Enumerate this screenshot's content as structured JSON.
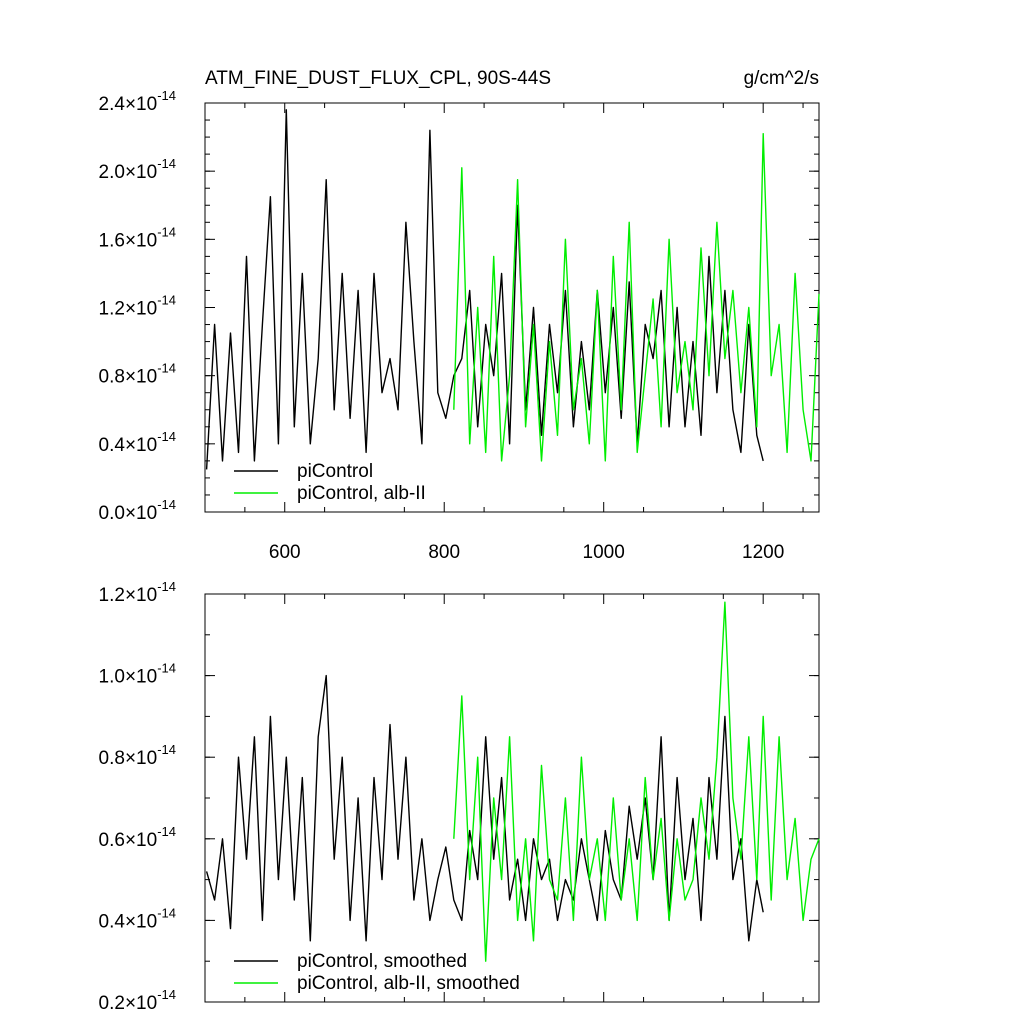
{
  "chart_data": [
    {
      "type": "line",
      "title": "ATM_FINE_DUST_FLUX_CPL, 90S-44S",
      "units": "g/cm^2/s",
      "xlim": [
        500,
        1270
      ],
      "ylim": [
        0,
        2.4
      ],
      "x_ticks": [
        600,
        800,
        1000,
        1200
      ],
      "x_tick_labels": [
        "600",
        "800",
        "1000",
        "1200"
      ],
      "y_ticks": [
        0,
        0.4,
        0.8,
        1.2,
        1.6,
        2.0,
        2.4
      ],
      "y_tick_labels": [
        "0.0",
        "0.4",
        "0.8",
        "1.2",
        "1.6",
        "2.0",
        "2.4"
      ],
      "y_scale_factor": "×10",
      "y_scale_exponent": "-14",
      "legend_position": "bottom-left",
      "series": [
        {
          "name": "piControl",
          "color": "#000000",
          "x": [
            502,
            512,
            522,
            532,
            542,
            552,
            562,
            572,
            582,
            592,
            602,
            612,
            622,
            632,
            642,
            652,
            662,
            672,
            682,
            692,
            702,
            712,
            722,
            732,
            742,
            752,
            762,
            772,
            782,
            792,
            802,
            812,
            822,
            832,
            842,
            852,
            862,
            872,
            882,
            892,
            902,
            912,
            922,
            932,
            942,
            952,
            962,
            972,
            982,
            992,
            1002,
            1012,
            1022,
            1032,
            1042,
            1052,
            1062,
            1072,
            1082,
            1092,
            1102,
            1112,
            1122,
            1132,
            1142,
            1152,
            1162,
            1172,
            1182,
            1192,
            1200
          ],
          "values": [
            0.25,
            1.1,
            0.3,
            1.05,
            0.35,
            1.5,
            0.3,
            1.1,
            1.85,
            0.4,
            2.36,
            0.5,
            1.4,
            0.4,
            0.9,
            1.95,
            0.6,
            1.4,
            0.55,
            1.3,
            0.35,
            1.4,
            0.7,
            0.9,
            0.6,
            1.7,
            1.0,
            0.4,
            2.24,
            0.7,
            0.55,
            0.8,
            0.9,
            1.3,
            0.5,
            1.1,
            0.8,
            1.4,
            0.4,
            1.8,
            0.6,
            1.2,
            0.45,
            1.1,
            0.7,
            1.3,
            0.5,
            1.0,
            0.6,
            1.3,
            0.7,
            1.2,
            0.55,
            1.35,
            0.4,
            1.1,
            0.9,
            1.3,
            0.5,
            1.2,
            0.5,
            1.0,
            0.45,
            1.5,
            0.7,
            1.3,
            0.6,
            0.35,
            1.1,
            0.45,
            0.3
          ]
        },
        {
          "name": "piControl, alb-II",
          "color": "#00ee00",
          "x": [
            812,
            822,
            832,
            842,
            852,
            862,
            872,
            882,
            892,
            902,
            912,
            922,
            932,
            942,
            952,
            962,
            972,
            982,
            992,
            1002,
            1012,
            1022,
            1032,
            1042,
            1052,
            1062,
            1072,
            1082,
            1092,
            1102,
            1112,
            1122,
            1132,
            1142,
            1152,
            1162,
            1172,
            1182,
            1192,
            1200,
            1210,
            1220,
            1230,
            1240,
            1250,
            1260,
            1270
          ],
          "values": [
            0.6,
            2.02,
            0.4,
            1.2,
            0.35,
            1.5,
            0.3,
            0.8,
            1.95,
            0.5,
            1.1,
            0.3,
            1.0,
            0.45,
            1.6,
            0.6,
            0.9,
            0.4,
            1.3,
            0.3,
            1.5,
            0.6,
            1.7,
            0.35,
            0.8,
            1.25,
            0.5,
            1.6,
            0.7,
            1.0,
            0.6,
            1.55,
            0.8,
            1.7,
            0.9,
            1.3,
            0.7,
            1.2,
            0.5,
            2.22,
            0.8,
            1.1,
            0.35,
            1.4,
            0.6,
            0.3,
            1.28
          ]
        }
      ]
    },
    {
      "type": "line",
      "xlim": [
        500,
        1270
      ],
      "ylim": [
        0.2,
        1.2
      ],
      "x_ticks": [
        600,
        800,
        1000,
        1200
      ],
      "y_ticks": [
        0.2,
        0.4,
        0.6,
        0.8,
        1.0,
        1.2
      ],
      "y_tick_labels": [
        "0.2",
        "0.4",
        "0.6",
        "0.8",
        "1.0",
        "1.2"
      ],
      "y_scale_factor": "×10",
      "y_scale_exponent": "-14",
      "legend_position": "bottom-left",
      "series": [
        {
          "name": "piControl, smoothed",
          "color": "#000000",
          "x": [
            502,
            512,
            522,
            532,
            542,
            552,
            562,
            572,
            582,
            592,
            602,
            612,
            622,
            632,
            642,
            652,
            662,
            672,
            682,
            692,
            702,
            712,
            722,
            732,
            742,
            752,
            762,
            772,
            782,
            792,
            802,
            812,
            822,
            832,
            842,
            852,
            862,
            872,
            882,
            892,
            902,
            912,
            922,
            932,
            942,
            952,
            962,
            972,
            982,
            992,
            1002,
            1012,
            1022,
            1032,
            1042,
            1052,
            1062,
            1072,
            1082,
            1092,
            1102,
            1112,
            1122,
            1132,
            1142,
            1152,
            1162,
            1172,
            1182,
            1192,
            1200
          ],
          "values": [
            0.52,
            0.45,
            0.6,
            0.38,
            0.8,
            0.55,
            0.85,
            0.4,
            0.9,
            0.5,
            0.8,
            0.45,
            0.75,
            0.35,
            0.85,
            1.0,
            0.55,
            0.8,
            0.4,
            0.7,
            0.35,
            0.75,
            0.5,
            0.88,
            0.55,
            0.8,
            0.45,
            0.6,
            0.4,
            0.5,
            0.58,
            0.45,
            0.4,
            0.62,
            0.5,
            0.85,
            0.55,
            0.75,
            0.45,
            0.55,
            0.4,
            0.6,
            0.5,
            0.55,
            0.4,
            0.5,
            0.45,
            0.6,
            0.5,
            0.4,
            0.62,
            0.5,
            0.45,
            0.68,
            0.55,
            0.7,
            0.5,
            0.85,
            0.4,
            0.75,
            0.5,
            0.65,
            0.4,
            0.75,
            0.55,
            0.9,
            0.5,
            0.6,
            0.35,
            0.5,
            0.42
          ]
        },
        {
          "name": "piControl, alb-II, smoothed",
          "color": "#00ee00",
          "x": [
            812,
            822,
            832,
            842,
            852,
            862,
            872,
            882,
            892,
            902,
            912,
            922,
            932,
            942,
            952,
            962,
            972,
            982,
            992,
            1002,
            1012,
            1022,
            1032,
            1042,
            1052,
            1062,
            1072,
            1082,
            1092,
            1102,
            1112,
            1122,
            1132,
            1142,
            1152,
            1162,
            1172,
            1182,
            1192,
            1200,
            1210,
            1220,
            1230,
            1240,
            1250,
            1260,
            1270
          ],
          "values": [
            0.6,
            0.95,
            0.5,
            0.8,
            0.3,
            0.7,
            0.5,
            0.85,
            0.4,
            0.6,
            0.35,
            0.78,
            0.5,
            0.45,
            0.7,
            0.4,
            0.8,
            0.5,
            0.6,
            0.4,
            0.7,
            0.45,
            0.6,
            0.4,
            0.75,
            0.5,
            0.65,
            0.4,
            0.6,
            0.45,
            0.5,
            0.7,
            0.55,
            0.8,
            1.18,
            0.7,
            0.55,
            0.85,
            0.5,
            0.9,
            0.45,
            0.85,
            0.5,
            0.65,
            0.4,
            0.55,
            0.6
          ]
        }
      ]
    }
  ]
}
